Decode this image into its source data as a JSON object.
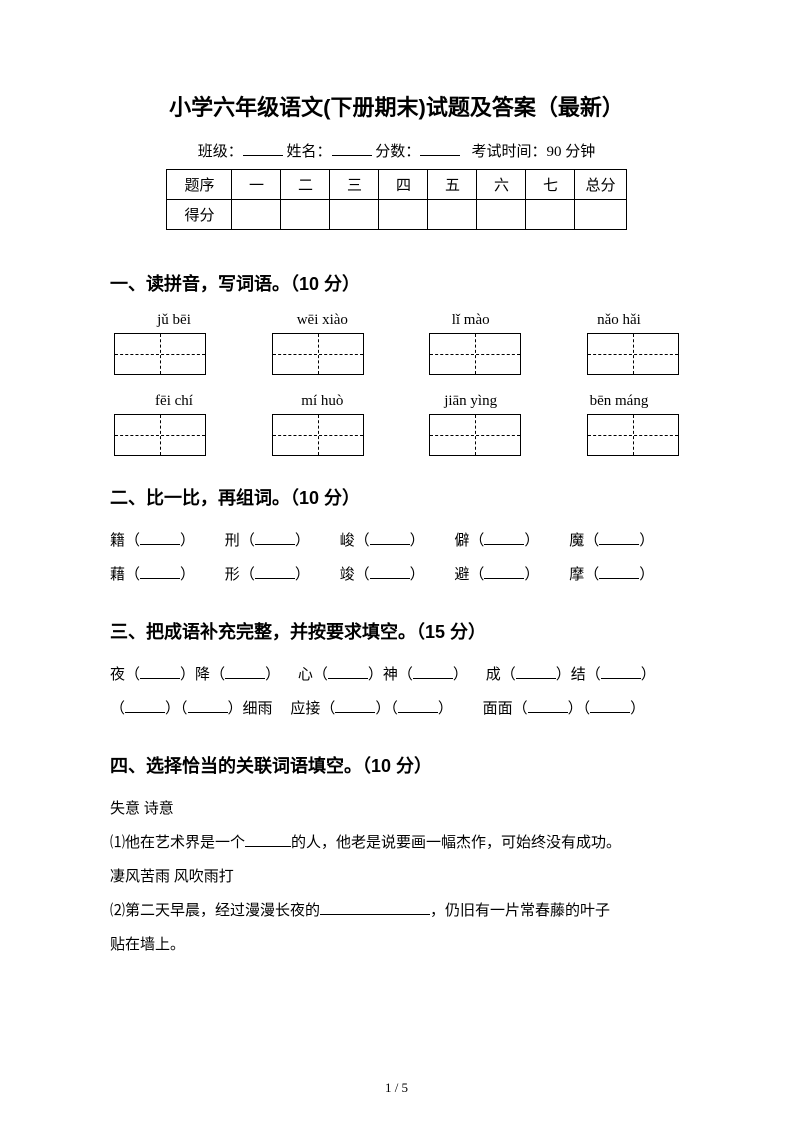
{
  "title": "小学六年级语文(下册期末)试题及答案（最新）",
  "info": {
    "class_label": "班级：",
    "name_label": "姓名：",
    "score_label": "分数：",
    "time_label": "考试时间：90 分钟"
  },
  "score_table": {
    "row1_label": "题序",
    "cols": [
      "一",
      "二",
      "三",
      "四",
      "五",
      "六",
      "七",
      "总分"
    ],
    "row2_label": "得分"
  },
  "sec1": {
    "heading": "一、读拼音，写词语。（10 分）",
    "row1": [
      "jǔ  bēi",
      "wēi xiào",
      "lǐ mào",
      "nǎo hǎi"
    ],
    "row2": [
      "fēi chí",
      "mí huò",
      "jiān yìng",
      "bēn máng"
    ]
  },
  "sec2": {
    "heading": "二、比一比，再组词。（10 分）",
    "row1": [
      "籍",
      "刑",
      "峻",
      "僻",
      "魔"
    ],
    "row2": [
      "藉",
      "形",
      "竣",
      "避",
      "摩"
    ]
  },
  "sec3": {
    "heading": "三、把成语补充完整，并按要求填空。（15 分）",
    "g1a": "夜",
    "g1b": "降",
    "g2a": "心",
    "g2b": "神",
    "g3a": "成",
    "g3b": "结",
    "g4": "细雨",
    "g5": "应接",
    "g6": "面面"
  },
  "sec4": {
    "heading": "四、选择恰当的关联词语填空。（10 分）",
    "words1": "失意    诗意",
    "q1": "⑴他在艺术界是一个",
    "q1b": "的人，他老是说要画一幅杰作，可始终没有成功。",
    "words2": "凄风苦雨    风吹雨打",
    "q2": "⑵第二天早晨，经过漫漫长夜的",
    "q2b": "，仍旧有一片常春藤的叶子",
    "q2c": "贴在墙上。"
  },
  "footer": "1 / 5"
}
